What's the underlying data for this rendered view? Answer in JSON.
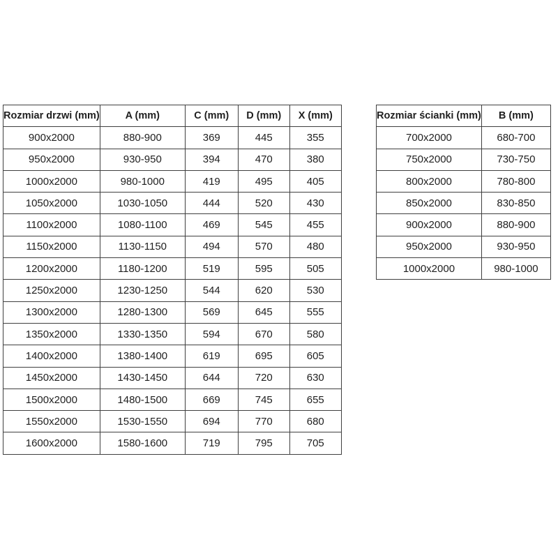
{
  "colors": {
    "background": "#ffffff",
    "text": "#1f1f1f",
    "border": "#3f3f3f"
  },
  "chart_data": [
    {
      "type": "table",
      "name": "door-sizes",
      "columns": [
        "Rozmiar drzwi (mm)",
        "A (mm)",
        "C (mm)",
        "D (mm)",
        "X (mm)"
      ],
      "rows": [
        [
          "900x2000",
          "880-900",
          "369",
          "445",
          "355"
        ],
        [
          "950x2000",
          "930-950",
          "394",
          "470",
          "380"
        ],
        [
          "1000x2000",
          "980-1000",
          "419",
          "495",
          "405"
        ],
        [
          "1050x2000",
          "1030-1050",
          "444",
          "520",
          "430"
        ],
        [
          "1100x2000",
          "1080-1100",
          "469",
          "545",
          "455"
        ],
        [
          "1150x2000",
          "1130-1150",
          "494",
          "570",
          "480"
        ],
        [
          "1200x2000",
          "1180-1200",
          "519",
          "595",
          "505"
        ],
        [
          "1250x2000",
          "1230-1250",
          "544",
          "620",
          "530"
        ],
        [
          "1300x2000",
          "1280-1300",
          "569",
          "645",
          "555"
        ],
        [
          "1350x2000",
          "1330-1350",
          "594",
          "670",
          "580"
        ],
        [
          "1400x2000",
          "1380-1400",
          "619",
          "695",
          "605"
        ],
        [
          "1450x2000",
          "1430-1450",
          "644",
          "720",
          "630"
        ],
        [
          "1500x2000",
          "1480-1500",
          "669",
          "745",
          "655"
        ],
        [
          "1550x2000",
          "1530-1550",
          "694",
          "770",
          "680"
        ],
        [
          "1600x2000",
          "1580-1600",
          "719",
          "795",
          "705"
        ]
      ]
    },
    {
      "type": "table",
      "name": "wall-sizes",
      "columns": [
        "Rozmiar ścianki (mm)",
        "B (mm)"
      ],
      "rows": [
        [
          "700x2000",
          "680-700"
        ],
        [
          "750x2000",
          "730-750"
        ],
        [
          "800x2000",
          "780-800"
        ],
        [
          "850x2000",
          "830-850"
        ],
        [
          "900x2000",
          "880-900"
        ],
        [
          "950x2000",
          "930-950"
        ],
        [
          "1000x2000",
          "980-1000"
        ]
      ]
    }
  ]
}
